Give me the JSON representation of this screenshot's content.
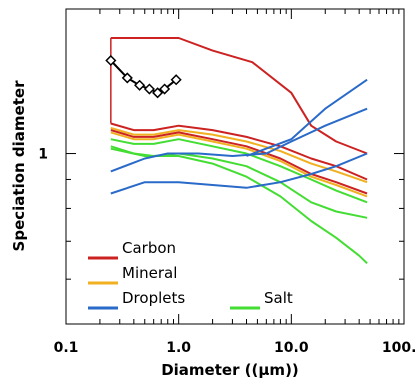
{
  "chart_data": {
    "type": "line",
    "title": "",
    "xlabel": "Diameter ((μm))",
    "ylabel": "Speciation diameter",
    "xscale": "log",
    "yscale": "log",
    "xlim": [
      0.1,
      100.0
    ],
    "ylim": [
      0.5,
      1.8
    ],
    "xticks": [
      0.1,
      1.0,
      10.0,
      100.0
    ],
    "xtick_labels": [
      "0.1",
      "1.0",
      "10.0",
      "100.0"
    ],
    "yticks": [
      1
    ],
    "ytick_labels": [
      "1"
    ],
    "grid": false,
    "legend_position": "bottom-left",
    "legend": [
      {
        "label": "Carbon",
        "color": "#cc2222"
      },
      {
        "label": "Mineral",
        "color": "#f0b020"
      },
      {
        "label": "Droplets",
        "color": "#2a6ac8"
      },
      {
        "label": "Salt",
        "color": "#44dd33"
      }
    ],
    "series": [
      {
        "group": "Carbon",
        "color": "#cc2222",
        "x": [
          0.25,
          1.0,
          2.0,
          4.5,
          10.0,
          15.0,
          25.0,
          47.0
        ],
        "y": [
          1.6,
          1.6,
          1.52,
          1.45,
          1.28,
          1.12,
          1.05,
          1.0
        ]
      },
      {
        "group": "Carbon",
        "color": "#cc2222",
        "x": [
          0.25,
          0.4,
          0.6,
          1.0,
          2.0,
          4.0,
          8.0,
          15.0,
          25.0,
          47.0
        ],
        "y": [
          1.13,
          1.1,
          1.1,
          1.12,
          1.1,
          1.07,
          1.03,
          0.98,
          0.95,
          0.9
        ]
      },
      {
        "group": "Mineral",
        "color": "#f0b020",
        "x": [
          0.25,
          0.4,
          0.6,
          1.0,
          2.0,
          4.0,
          8.0,
          15.0,
          25.0,
          47.0
        ],
        "y": [
          1.11,
          1.08,
          1.08,
          1.1,
          1.08,
          1.05,
          1.01,
          0.96,
          0.93,
          0.89
        ]
      },
      {
        "group": "Carbon",
        "color": "#cc2222",
        "x": [
          0.25,
          0.4,
          0.6,
          1.0,
          2.0,
          4.0,
          8.0,
          15.0,
          25.0,
          47.0
        ],
        "y": [
          1.1,
          1.07,
          1.07,
          1.09,
          1.06,
          1.03,
          0.98,
          0.92,
          0.89,
          0.85
        ]
      },
      {
        "group": "Mineral",
        "color": "#f0b020",
        "x": [
          0.25,
          0.4,
          0.6,
          1.0,
          2.0,
          4.0,
          8.0,
          15.0,
          25.0,
          47.0
        ],
        "y": [
          1.09,
          1.06,
          1.06,
          1.08,
          1.05,
          1.02,
          0.97,
          0.91,
          0.88,
          0.84
        ]
      },
      {
        "group": "Salt",
        "color": "#44dd33",
        "x": [
          0.25,
          0.4,
          0.6,
          1.0,
          2.0,
          4.0,
          8.0,
          15.0,
          25.0,
          47.0
        ],
        "y": [
          1.06,
          1.04,
          1.04,
          1.06,
          1.03,
          1.0,
          0.95,
          0.9,
          0.86,
          0.82
        ]
      },
      {
        "group": "Salt",
        "color": "#44dd33",
        "x": [
          0.25,
          0.4,
          0.6,
          1.0,
          2.0,
          4.0,
          8.0,
          15.0,
          25.0,
          47.0
        ],
        "y": [
          1.03,
          1.0,
          0.99,
          1.0,
          0.98,
          0.95,
          0.89,
          0.82,
          0.79,
          0.77
        ]
      },
      {
        "group": "Salt",
        "color": "#44dd33",
        "x": [
          0.25,
          0.5,
          1.0,
          2.0,
          4.0,
          8.0,
          15.0,
          25.0,
          40.0,
          47.0
        ],
        "y": [
          1.02,
          0.99,
          0.99,
          0.96,
          0.91,
          0.84,
          0.76,
          0.71,
          0.66,
          0.64
        ]
      },
      {
        "group": "Droplets",
        "color": "#2a6ac8",
        "x": [
          0.25,
          0.5,
          0.8,
          1.5,
          3.0,
          6.0,
          10.0,
          20.0,
          47.0
        ],
        "y": [
          0.93,
          0.98,
          1.0,
          1.0,
          0.99,
          1.0,
          1.05,
          1.12,
          1.2
        ]
      },
      {
        "group": "Droplets",
        "color": "#2a6ac8",
        "x": [
          0.25,
          0.5,
          1.0,
          2.0,
          4.0,
          8.0,
          15.0,
          25.0,
          47.0
        ],
        "y": [
          0.85,
          0.89,
          0.89,
          0.88,
          0.87,
          0.89,
          0.92,
          0.95,
          1.0
        ]
      },
      {
        "group": "Droplets",
        "color": "#2a6ac8",
        "x": [
          4.0,
          10.0,
          20.0,
          47.0
        ],
        "y": [
          0.99,
          1.06,
          1.2,
          1.35
        ]
      }
    ],
    "markers": {
      "color": "#000000",
      "shape": "diamond",
      "x": [
        0.25,
        0.35,
        0.45,
        0.55,
        0.65,
        0.75,
        0.95
      ],
      "y": [
        1.46,
        1.36,
        1.32,
        1.3,
        1.28,
        1.3,
        1.35
      ]
    },
    "boundary": {
      "color": "#cc2222",
      "x": [
        0.25,
        0.25
      ],
      "y": [
        1.13,
        1.6
      ]
    }
  }
}
